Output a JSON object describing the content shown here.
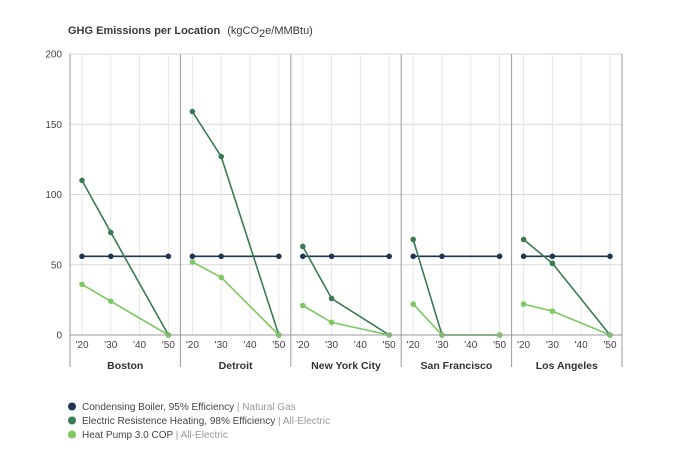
{
  "title": "GHG Emissions per Location",
  "unit_prefix": "(kgCO",
  "unit_sub": "2",
  "unit_suffix": "e/MMBtu)",
  "chart_data": {
    "type": "line",
    "title": "GHG Emissions per Location (kgCO2e/MMBtu)",
    "ylim": [
      0,
      200
    ],
    "yticks": [
      0,
      50,
      100,
      150,
      200
    ],
    "x": [
      "'20",
      "'30",
      "'40",
      "'50"
    ],
    "grid": true,
    "legend_placement": "bottom-left",
    "panels": [
      {
        "location": "Boston",
        "series": [
          {
            "name": "Condensing Boiler, 95% Efficiency",
            "values": [
              56,
              56,
              null,
              56
            ]
          },
          {
            "name": "Electric Resistence Heating, 98% Efficiency",
            "values": [
              110,
              73,
              null,
              0
            ]
          },
          {
            "name": "Heat Pump 3.0 COP",
            "values": [
              36,
              24,
              null,
              0
            ]
          }
        ]
      },
      {
        "location": "Detroit",
        "series": [
          {
            "name": "Condensing Boiler, 95% Efficiency",
            "values": [
              56,
              56,
              null,
              56
            ]
          },
          {
            "name": "Electric Resistence Heating, 98% Efficiency",
            "values": [
              159,
              127,
              null,
              0
            ]
          },
          {
            "name": "Heat Pump 3.0 COP",
            "values": [
              52,
              41,
              null,
              0
            ]
          }
        ]
      },
      {
        "location": "New York City",
        "series": [
          {
            "name": "Condensing Boiler, 95% Efficiency",
            "values": [
              56,
              56,
              null,
              56
            ]
          },
          {
            "name": "Electric Resistence Heating, 98% Efficiency",
            "values": [
              63,
              26,
              null,
              0
            ]
          },
          {
            "name": "Heat Pump 3.0 COP",
            "values": [
              21,
              9,
              null,
              0
            ]
          }
        ]
      },
      {
        "location": "San Francisco",
        "series": [
          {
            "name": "Condensing Boiler, 95% Efficiency",
            "values": [
              56,
              56,
              null,
              56
            ]
          },
          {
            "name": "Electric Resistence Heating, 98% Efficiency",
            "values": [
              68,
              0,
              null,
              0
            ]
          },
          {
            "name": "Heat Pump 3.0 COP",
            "values": [
              22,
              0,
              null,
              0
            ]
          }
        ]
      },
      {
        "location": "Los Angeles",
        "series": [
          {
            "name": "Condensing Boiler, 95% Efficiency",
            "values": [
              56,
              56,
              null,
              56
            ]
          },
          {
            "name": "Electric Resistence Heating, 98% Efficiency",
            "values": [
              68,
              51,
              null,
              0
            ]
          },
          {
            "name": "Heat Pump 3.0 COP",
            "values": [
              22,
              17,
              null,
              0
            ]
          }
        ]
      }
    ],
    "legend": [
      {
        "name": "Condensing Boiler, 95% Efficiency",
        "type": "Natural Gas",
        "color": "#1f3653"
      },
      {
        "name": "Electric Resistence Heating, 98% Efficiency",
        "type": "All-Electric",
        "color": "#3a7b52"
      },
      {
        "name": "Heat Pump 3.0 COP",
        "type": "All-Electric",
        "color": "#7cc862"
      }
    ]
  }
}
